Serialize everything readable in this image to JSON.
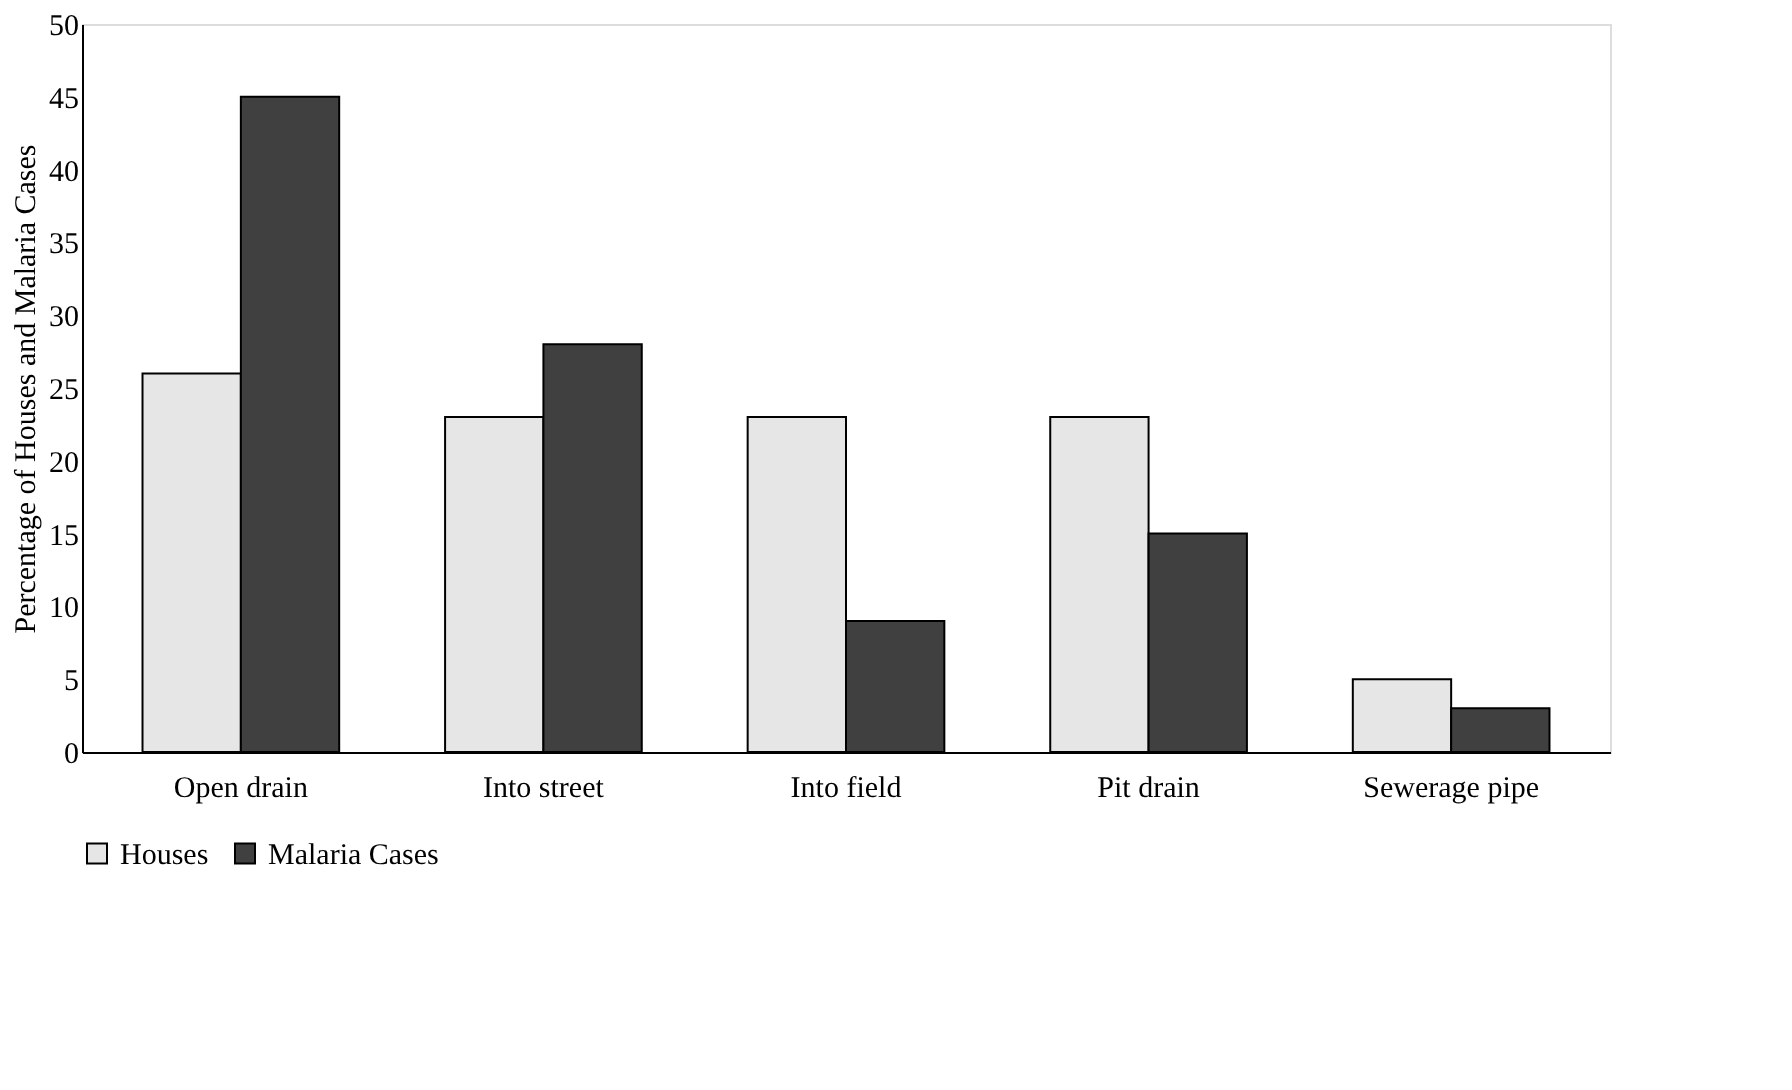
{
  "chart_data": {
    "type": "bar",
    "categories": [
      "Open drain",
      "Into street",
      "Into field",
      "Pit drain",
      "Sewerage pipe"
    ],
    "series": [
      {
        "name": "Houses",
        "color": "#e6e6e6",
        "values": [
          26,
          23,
          23,
          23,
          5
        ]
      },
      {
        "name": "Malaria Cases",
        "color": "#404040",
        "values": [
          45,
          28,
          9,
          15,
          3
        ]
      }
    ],
    "ylabel": "Percentage of Houses and Malaria Cases",
    "ylim": [
      0,
      50
    ],
    "yticks": [
      0,
      5,
      10,
      15,
      20,
      25,
      30,
      35,
      40,
      45,
      50
    ],
    "grid": false,
    "legend": "bottom"
  }
}
